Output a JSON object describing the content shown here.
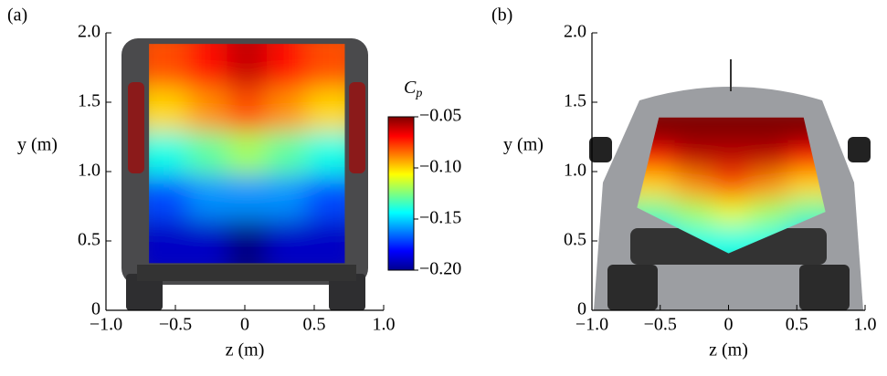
{
  "chart_data": [
    {
      "type": "heatmap",
      "panel_label": "(a)",
      "xlabel": "z (m)",
      "ylabel": "y (m)",
      "xlim": [
        -1,
        1
      ],
      "ylim": [
        0,
        2
      ],
      "xticks": [
        {
          "value": -1,
          "label": "−1.0"
        },
        {
          "value": -0.5,
          "label": "−0.5"
        },
        0,
        0.5,
        {
          "value": 1,
          "label": "1.0"
        }
      ],
      "yticks": [
        0,
        0.5,
        {
          "value": 1,
          "label": "1.0"
        },
        1.5,
        {
          "value": 2,
          "label": "2.0"
        }
      ],
      "region": {
        "z": [
          -0.69,
          0.72,
          0.72,
          -0.69
        ],
        "y": [
          1.92,
          1.92,
          0.34,
          0.34
        ]
      },
      "values": [
        [
          -0.08,
          -0.07,
          -0.06,
          -0.07,
          -0.08
        ],
        [
          -0.1,
          -0.09,
          -0.08,
          -0.09,
          -0.1
        ],
        [
          -0.14,
          -0.13,
          -0.12,
          -0.13,
          -0.14
        ],
        [
          -0.17,
          -0.16,
          -0.16,
          -0.16,
          -0.17
        ],
        [
          -0.19,
          -0.19,
          -0.2,
          -0.19,
          -0.19
        ]
      ],
      "clim": [
        -0.2,
        -0.05
      ],
      "colorbar_label": "C",
      "colorbar_label_sub": "p",
      "colorbar_ticks": [
        {
          "value": -0.05,
          "label": "−0.05"
        },
        {
          "value": -0.1,
          "label": "−0.10"
        },
        {
          "value": -0.15,
          "label": "−0.15"
        },
        {
          "value": -0.2,
          "label": "−0.20"
        }
      ]
    },
    {
      "type": "heatmap",
      "panel_label": "(b)",
      "xlabel": "z (m)",
      "ylabel": "y (m)",
      "xlim": [
        -1,
        1
      ],
      "ylim": [
        0,
        2
      ],
      "xticks": [
        {
          "value": -1,
          "label": "−1.0"
        },
        {
          "value": -0.5,
          "label": "−0.5"
        },
        0,
        0.5,
        {
          "value": 1,
          "label": "1.0"
        }
      ],
      "yticks": [
        0,
        0.5,
        {
          "value": 1,
          "label": "1.0"
        },
        1.5,
        {
          "value": 2,
          "label": "2.0"
        }
      ],
      "region": {
        "z": [
          -0.51,
          0.55,
          0.71,
          0,
          -0.67
        ],
        "y": [
          1.39,
          1.39,
          0.71,
          0.41,
          0.74
        ]
      },
      "values": [
        [
          -0.05,
          -0.05,
          -0.05,
          -0.05,
          -0.05
        ],
        [
          -0.07,
          -0.06,
          -0.06,
          -0.06,
          -0.07
        ],
        [
          -0.1,
          -0.09,
          -0.08,
          -0.09,
          -0.1
        ],
        [
          -0.13,
          -0.12,
          -0.11,
          -0.12,
          -0.13
        ],
        [
          -0.15,
          -0.14,
          -0.14,
          -0.14,
          -0.15
        ]
      ],
      "clim": [
        -0.2,
        -0.05
      ]
    }
  ]
}
